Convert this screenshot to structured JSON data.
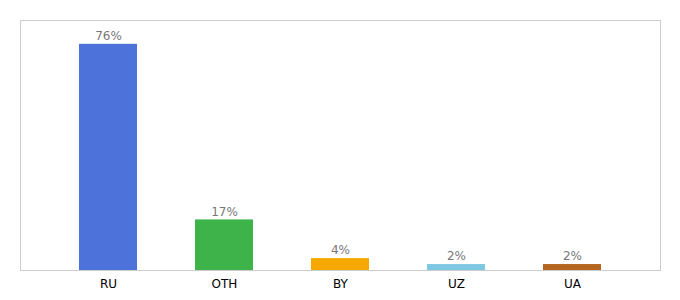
{
  "chart_data": {
    "type": "bar",
    "categories": [
      "RU",
      "OTH",
      "BY",
      "UZ",
      "UA"
    ],
    "values": [
      76,
      17,
      4,
      2,
      2
    ],
    "value_labels": [
      "76%",
      "17%",
      "4%",
      "2%",
      "2%"
    ],
    "colors": [
      "#4d72d9",
      "#3db34a",
      "#f5a800",
      "#7ec8e3",
      "#b5651d"
    ],
    "ylim": [
      0,
      84
    ],
    "grid": false,
    "data_labels": true,
    "tick_labels": "x"
  }
}
